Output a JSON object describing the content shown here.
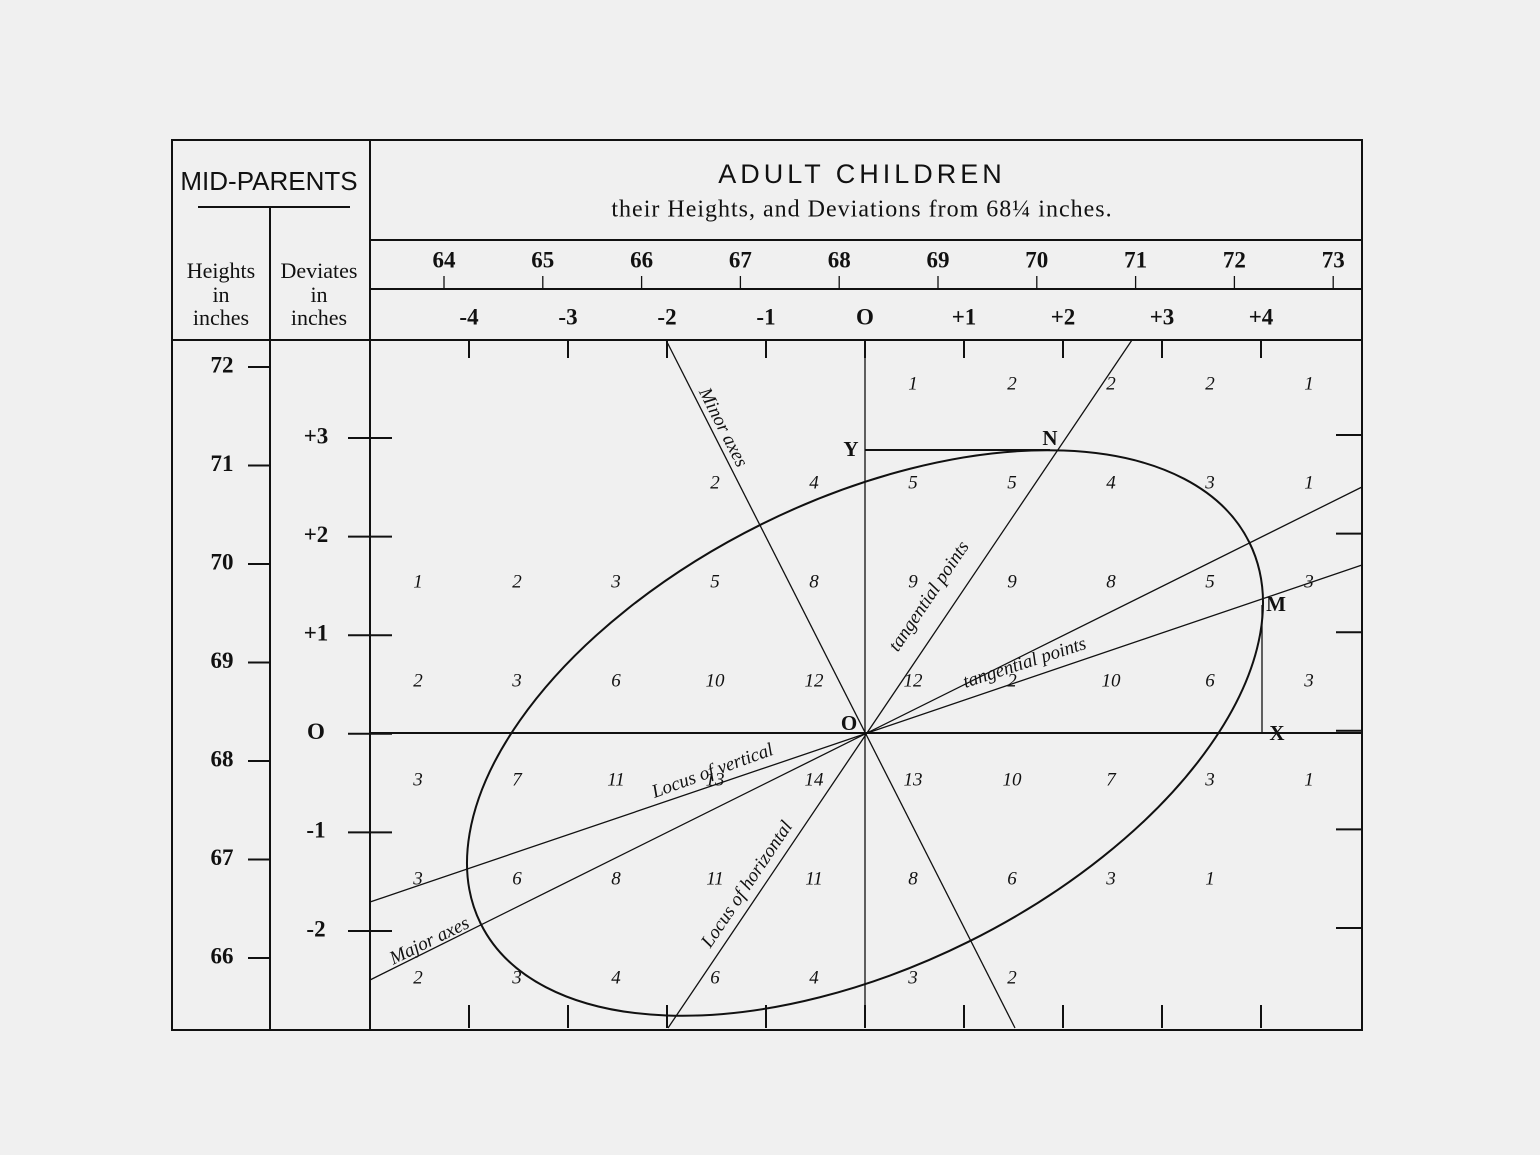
{
  "header": {
    "mid_parents": "MID-PARENTS",
    "heights_col": [
      "Heights",
      "in",
      "inches"
    ],
    "deviates_col": [
      "Deviates",
      "in",
      "inches"
    ],
    "title": "ADULT CHILDREN",
    "subtitle": "their Heights, and Deviations from 68¼ inches."
  },
  "top_heights": [
    "64",
    "65",
    "66",
    "67",
    "68",
    "69",
    "70",
    "71",
    "72",
    "73"
  ],
  "top_deviations": [
    "-4",
    "-3",
    "-2",
    "-1",
    "O",
    "+1",
    "+2",
    "+3",
    "+4"
  ],
  "left_heights": [
    "72",
    "71",
    "70",
    "69",
    "68",
    "67",
    "66"
  ],
  "left_deviations": [
    "+3",
    "+2",
    "+1",
    "O",
    "-1",
    "-2"
  ],
  "counts": [
    [
      null,
      null,
      null,
      null,
      null,
      1,
      2,
      2,
      2,
      1
    ],
    [
      null,
      null,
      null,
      2,
      4,
      5,
      5,
      4,
      3,
      1
    ],
    [
      1,
      2,
      3,
      5,
      8,
      9,
      9,
      8,
      5,
      3
    ],
    [
      2,
      3,
      6,
      10,
      12,
      12,
      2,
      10,
      6,
      3
    ],
    [
      3,
      7,
      11,
      13,
      14,
      13,
      10,
      7,
      3,
      1
    ],
    [
      3,
      6,
      8,
      11,
      11,
      8,
      6,
      3,
      1,
      null
    ],
    [
      2,
      3,
      4,
      6,
      4,
      3,
      2,
      null,
      null,
      null
    ]
  ],
  "labels": {
    "Y": "Y",
    "N": "N",
    "M": "M",
    "X": "X",
    "O": "O",
    "minor_axes": "Minor axes",
    "major_axes": "Major axes",
    "tangential_points_upper": "tangential points",
    "tangential_points_lower": "tangential points",
    "locus_vertical": "Locus of vertical",
    "locus_horizontal": "Locus of horizontal"
  }
}
